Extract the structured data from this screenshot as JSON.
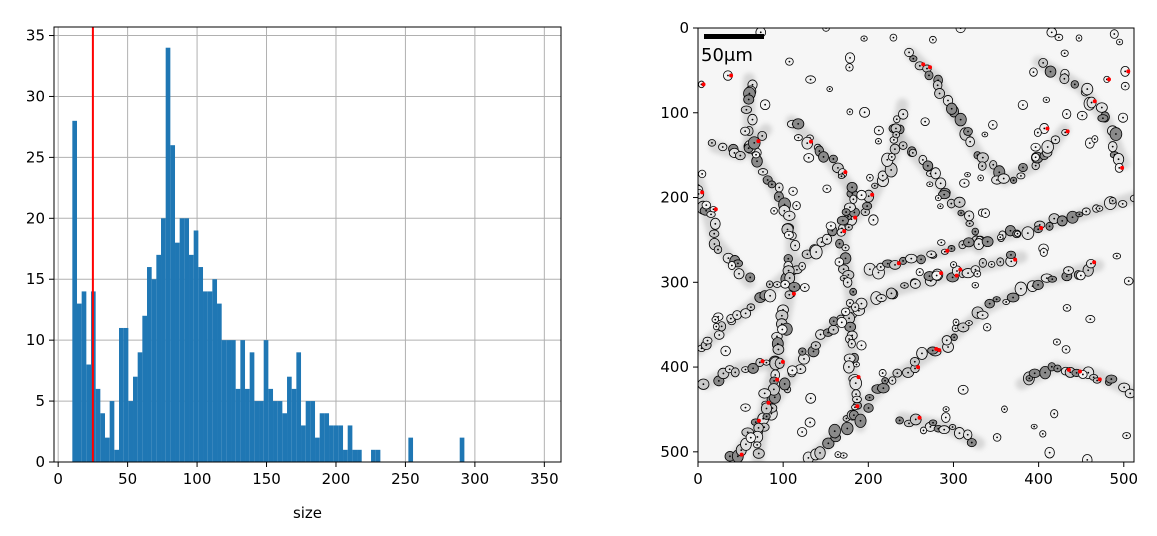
{
  "chart_data": [
    {
      "type": "bar",
      "subtype": "histogram",
      "title": "",
      "xlabel": "size",
      "ylabel": "",
      "xlim": [
        -3,
        362
      ],
      "ylim": [
        0,
        35.7
      ],
      "xticks": [
        0,
        50,
        100,
        150,
        200,
        250,
        300,
        350
      ],
      "yticks": [
        0,
        5,
        10,
        15,
        20,
        25,
        30,
        35
      ],
      "grid": true,
      "bar_color": "#1f77b4",
      "bin_start": 10.2,
      "bin_width": 3.36,
      "counts": [
        28,
        13,
        14,
        8,
        14,
        6,
        4,
        2,
        5,
        1,
        11,
        11,
        5,
        7,
        9,
        12,
        16,
        15,
        17,
        20,
        34,
        26,
        18,
        20,
        20,
        17,
        19,
        16,
        14,
        14,
        15,
        13,
        10,
        10,
        10,
        6,
        10,
        6,
        9,
        5,
        5,
        10,
        6,
        5,
        5,
        4,
        7,
        6,
        9,
        3,
        5,
        5,
        2,
        4,
        4,
        3,
        3,
        3,
        1,
        3,
        1,
        1,
        0,
        0,
        1,
        1,
        0,
        0,
        0,
        0,
        0,
        0,
        2,
        0,
        0,
        0,
        0,
        0,
        0,
        0,
        0,
        0,
        0,
        2,
        0,
        0,
        0,
        0,
        0,
        0,
        0,
        0,
        0,
        0,
        0,
        0,
        0,
        0,
        0,
        0,
        0
      ],
      "threshold_line": {
        "x": 25,
        "color": "#ff0000"
      }
    },
    {
      "type": "image",
      "description": "segmented microscopy image with cell outlines",
      "xlim": [
        0,
        512
      ],
      "ylim": [
        512,
        0
      ],
      "xticks": [
        0,
        100,
        200,
        300,
        400,
        500
      ],
      "yticks": [
        0,
        100,
        200,
        300,
        400,
        500
      ],
      "scale_bar_label": "50μm",
      "outline_color": "#000000",
      "highlight_color": "#ff0000"
    }
  ]
}
